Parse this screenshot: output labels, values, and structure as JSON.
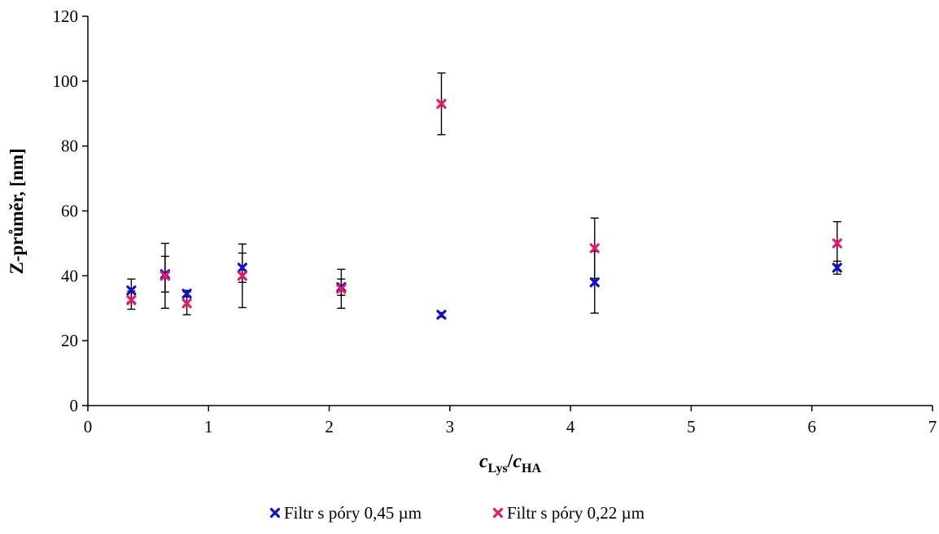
{
  "chart_data": {
    "type": "scatter",
    "xlabel": {
      "base1": "c",
      "sub1": "Lys",
      "slash": "/",
      "base2": "c",
      "sub2": "HA"
    },
    "ylabel": "Z-průměr, [nm]",
    "xlim": [
      0,
      7
    ],
    "ylim": [
      0,
      120
    ],
    "x_ticks": [
      "0",
      "1",
      "2",
      "3",
      "4",
      "5",
      "6",
      "7"
    ],
    "y_ticks": [
      "0",
      "20",
      "40",
      "60",
      "80",
      "100",
      "120"
    ],
    "grid": false,
    "legend_position": "bottom-center",
    "series": [
      {
        "name": "Filtr s póry 0,45 µm",
        "color": "#1010c8",
        "marker": "x",
        "points": [
          {
            "x": 0.36,
            "y": 35.5,
            "err": 3.5
          },
          {
            "x": 0.64,
            "y": 40.5,
            "err": 5.5
          },
          {
            "x": 0.82,
            "y": 34.5,
            "err": 1.0
          },
          {
            "x": 1.28,
            "y": 42.5,
            "err": 4.5
          },
          {
            "x": 2.1,
            "y": 36.5,
            "err": 2.5
          },
          {
            "x": 2.93,
            "y": 28.0,
            "err": 0.7
          },
          {
            "x": 4.2,
            "y": 38.0,
            "err": 9.5
          },
          {
            "x": 6.21,
            "y": 42.5,
            "err": 2.0
          }
        ]
      },
      {
        "name": "Filtr s póry 0,22 µm",
        "color": "#e8186e",
        "marker": "x",
        "points": [
          {
            "x": 0.36,
            "y": 32.5,
            "err": 2.8
          },
          {
            "x": 0.64,
            "y": 40.0,
            "err": 10.0
          },
          {
            "x": 0.82,
            "y": 31.5,
            "err": 3.5
          },
          {
            "x": 1.28,
            "y": 40.0,
            "err": 9.8
          },
          {
            "x": 2.1,
            "y": 36.0,
            "err": 6.0
          },
          {
            "x": 2.93,
            "y": 93.0,
            "err": 9.5
          },
          {
            "x": 4.2,
            "y": 48.5,
            "err": 9.3
          },
          {
            "x": 6.21,
            "y": 50.0,
            "err": 6.7
          }
        ]
      }
    ]
  }
}
